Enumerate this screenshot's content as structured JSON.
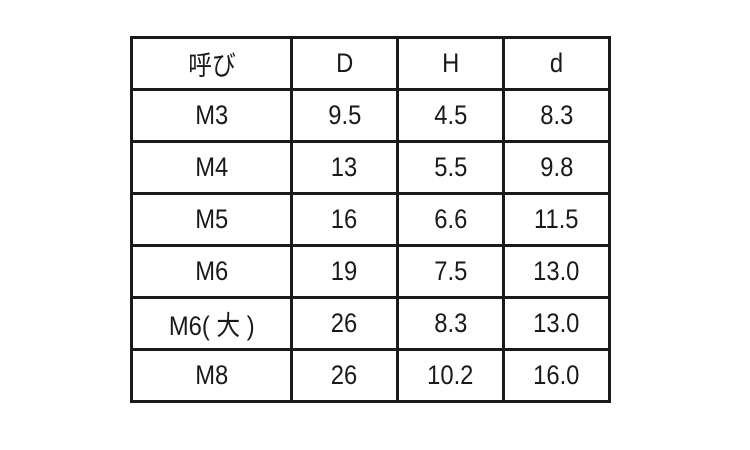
{
  "table": {
    "headers": [
      "呼び",
      "D",
      "H",
      "d"
    ],
    "rows": [
      [
        "M3",
        "9.5",
        "4.5",
        "8.3"
      ],
      [
        "M4",
        "13",
        "5.5",
        "9.8"
      ],
      [
        "M5",
        "16",
        "6.6",
        "11.5"
      ],
      [
        "M6",
        "19",
        "7.5",
        "13.0"
      ],
      [
        "M6( 大 )",
        "26",
        "8.3",
        "13.0"
      ],
      [
        "M8",
        "26",
        "10.2",
        "16.0"
      ]
    ]
  }
}
